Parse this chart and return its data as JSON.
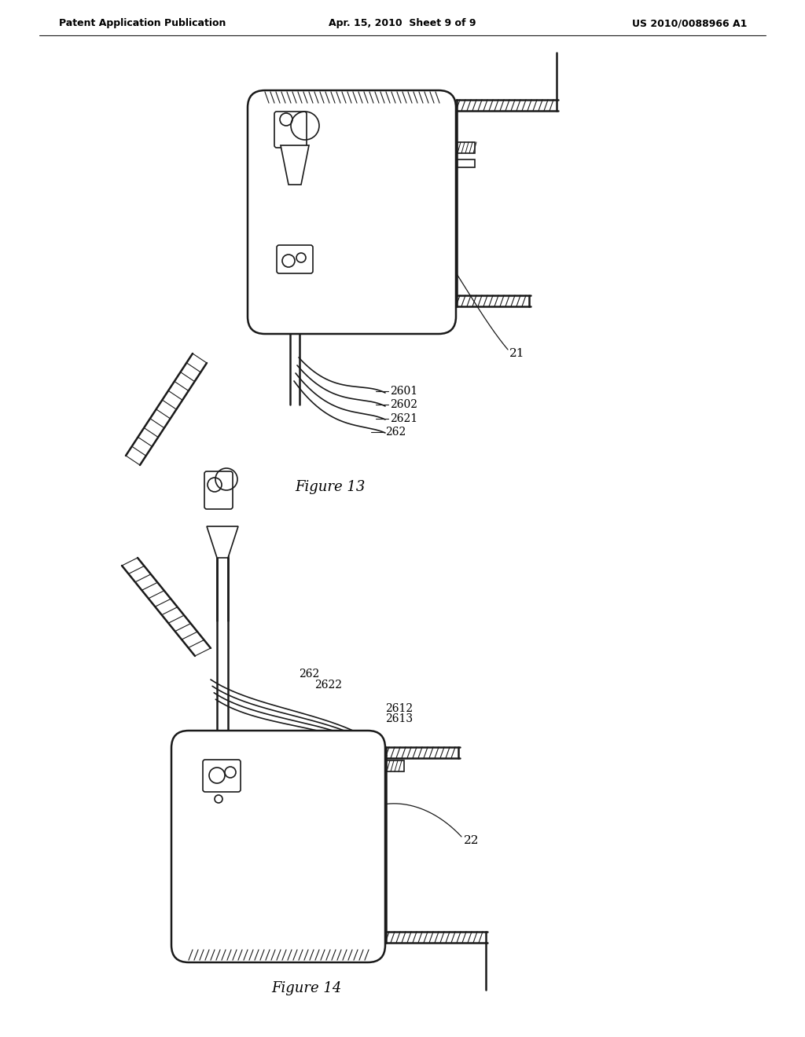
{
  "bg_color": "#ffffff",
  "line_color": "#1a1a1a",
  "header_left": "Patent Application Publication",
  "header_mid": "Apr. 15, 2010  Sheet 9 of 9",
  "header_right": "US 2010/0088966 A1",
  "fig13_caption": "Figure 13",
  "fig14_caption": "Figure 14",
  "label_21": "21",
  "label_22": "22",
  "label_2601": "2601",
  "label_2602": "2602",
  "label_2621": "2621",
  "label_262a": "262",
  "label_262b": "262",
  "label_2622": "2622",
  "label_2612": "2612",
  "label_2613": "2613"
}
